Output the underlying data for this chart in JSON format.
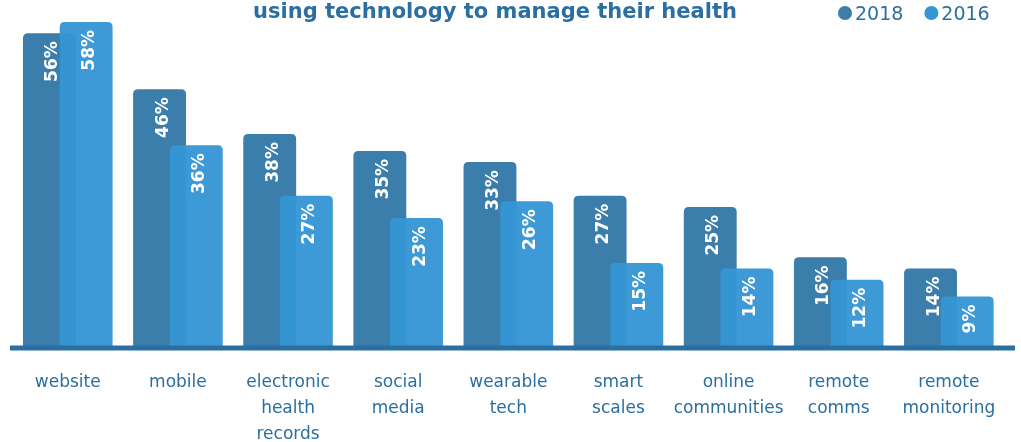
{
  "chart_data": {
    "type": "bar",
    "title": "using technology to manage their health",
    "categories": [
      "website",
      "mobile",
      "electronic health records",
      "social media",
      "wearable tech",
      "smart scales",
      "online communities",
      "remote comms",
      "remote monitoring"
    ],
    "series": [
      {
        "name": "2018",
        "color": "#3b7dab",
        "values": [
          56,
          46,
          38,
          35,
          33,
          27,
          25,
          16,
          14
        ],
        "value_labels": [
          "56%",
          "46%",
          "38%",
          "35%",
          "33%",
          "27%",
          "25%",
          "16%",
          "14%"
        ]
      },
      {
        "name": "2016",
        "color": "#3596d4",
        "values": [
          58,
          36,
          27,
          23,
          26,
          15,
          14,
          12,
          9
        ],
        "value_labels": [
          "58%",
          "36%",
          "27%",
          "23%",
          "26%",
          "15%",
          "14%",
          "12%",
          "9%"
        ]
      }
    ],
    "legend": "top right"
  }
}
